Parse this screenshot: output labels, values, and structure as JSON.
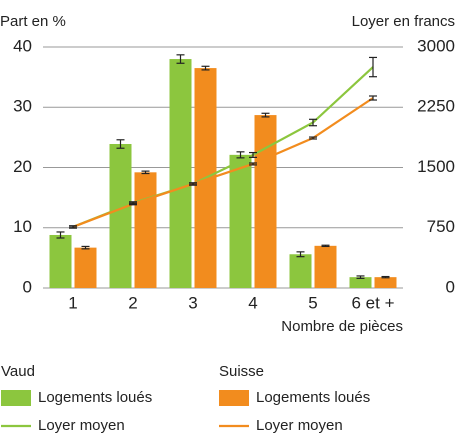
{
  "chart_data": {
    "type": "bar",
    "ylabel": "Part en %",
    "y2label": "Loyer en francs",
    "xlabel": "Nombre de pièces",
    "categories": [
      "1",
      "2",
      "3",
      "4",
      "5",
      "6 et +"
    ],
    "ylim": [
      0,
      40
    ],
    "yticks": [
      0,
      10,
      20,
      30,
      40
    ],
    "y2lim": [
      0,
      3000
    ],
    "y2ticks": [
      0,
      750,
      1500,
      2250,
      3000
    ],
    "grid": true,
    "series": [
      {
        "name": "Logements loués",
        "group": "Vaud",
        "type": "bar",
        "color": "#8cc63e",
        "values": [
          8.8,
          23.9,
          38.0,
          22.1,
          5.6,
          1.8
        ],
        "errors": [
          0.5,
          0.7,
          0.7,
          0.5,
          0.4,
          0.2
        ]
      },
      {
        "name": "Logements loués",
        "group": "Suisse",
        "type": "bar",
        "color": "#f28c1e",
        "values": [
          6.7,
          19.2,
          36.5,
          28.7,
          7.0,
          1.8
        ],
        "errors": [
          0.2,
          0.2,
          0.3,
          0.3,
          0.1,
          0.1
        ]
      },
      {
        "name": "Loyer moyen",
        "group": "Vaud",
        "type": "line",
        "axis": "y2",
        "color": "#8cc63e",
        "values": [
          760,
          1058,
          1295,
          1656,
          2060,
          2750
        ],
        "errors": [
          15,
          15,
          15,
          30,
          40,
          120
        ]
      },
      {
        "name": "Loyer moyen",
        "group": "Suisse",
        "type": "line",
        "axis": "y2",
        "color": "#f28c1e",
        "values": [
          760,
          1046,
          1295,
          1544,
          1867,
          2365
        ],
        "errors": [
          10,
          10,
          10,
          12,
          12,
          25
        ]
      }
    ]
  }
}
